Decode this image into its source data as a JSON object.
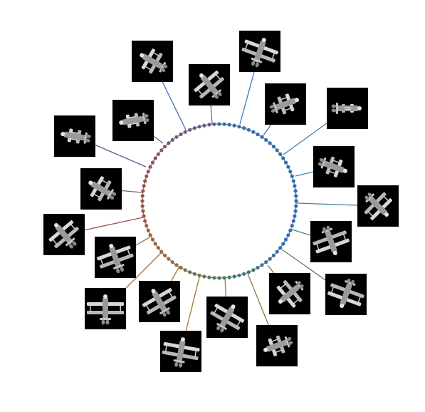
{
  "figure": {
    "background": "#ffffff",
    "tile_color": "#000000",
    "ring_color_start": "#2f6db5",
    "ring_color_mid": "#4f7d5c",
    "ring_color_end": "#a5682f",
    "ring_points": 96,
    "subject": "biplane",
    "views": [
      {
        "id": "view-1",
        "color": "#4a6fb3",
        "yaw": 300,
        "pitch": 20
      },
      {
        "id": "view-2",
        "color": "#4a72b4",
        "yaw": 320,
        "pitch": 15
      },
      {
        "id": "view-3",
        "color": "#3a78b5",
        "yaw": 20,
        "pitch": -10
      },
      {
        "id": "view-4",
        "color": "#3a7cb3",
        "yaw": 70,
        "pitch": 5
      },
      {
        "id": "view-5",
        "color": "#3f80ad",
        "yaw": 90,
        "pitch": 0
      },
      {
        "id": "view-6",
        "color": "#3f84a5",
        "yaw": 110,
        "pitch": 10
      },
      {
        "id": "view-7",
        "color": "#3f8595",
        "yaw": 135,
        "pitch": 15
      },
      {
        "id": "view-8",
        "color": "#4a8575",
        "yaw": 160,
        "pitch": 20
      },
      {
        "id": "view-9",
        "color": "#6a7d55",
        "yaw": 200,
        "pitch": 25
      },
      {
        "id": "view-10",
        "color": "#6e7a4a",
        "yaw": 230,
        "pitch": 30
      },
      {
        "id": "view-11",
        "color": "#8a7a3a",
        "yaw": 250,
        "pitch": 10
      },
      {
        "id": "view-12",
        "color": "#a07a2e",
        "yaw": 30,
        "pitch": 5
      },
      {
        "id": "view-13",
        "color": "#a5722a",
        "yaw": 10,
        "pitch": -5
      },
      {
        "id": "view-14",
        "color": "#a86e2c",
        "yaw": 330,
        "pitch": 5
      },
      {
        "id": "view-15",
        "color": "#a86a32",
        "yaw": 0,
        "pitch": 0
      },
      {
        "id": "view-16",
        "color": "#a0603a",
        "yaw": 340,
        "pitch": -5
      },
      {
        "id": "view-17",
        "color": "#9a5048",
        "yaw": 320,
        "pitch": -10
      },
      {
        "id": "view-18",
        "color": "#8a5a70",
        "yaw": 300,
        "pitch": 5
      },
      {
        "id": "view-19",
        "color": "#6e5a8a",
        "yaw": 280,
        "pitch": 10
      },
      {
        "id": "view-20",
        "color": "#5e5f9e",
        "yaw": 260,
        "pitch": 15
      }
    ]
  }
}
